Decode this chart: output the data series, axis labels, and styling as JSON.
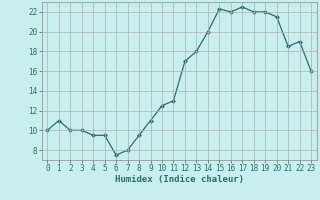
{
  "x": [
    0,
    1,
    2,
    3,
    4,
    5,
    6,
    7,
    8,
    9,
    10,
    11,
    12,
    13,
    14,
    15,
    16,
    17,
    18,
    19,
    20,
    21,
    22,
    23
  ],
  "y": [
    10,
    11,
    10,
    10,
    9.5,
    9.5,
    7.5,
    8,
    9.5,
    11,
    12.5,
    13,
    17,
    18,
    20,
    22.3,
    22,
    22.5,
    22,
    22,
    21.5,
    18.5,
    19,
    16
  ],
  "line_color": "#2d6e6e",
  "marker_color": "#2d6e6e",
  "bg_color": "#c8eeee",
  "grid_color": "#b0b0b0",
  "xlabel": "Humidex (Indice chaleur)",
  "ylim": [
    7,
    23
  ],
  "xlim": [
    -0.5,
    23.5
  ],
  "yticks": [
    8,
    10,
    12,
    14,
    16,
    18,
    20,
    22
  ],
  "xtick_labels": [
    "0",
    "1",
    "2",
    "3",
    "4",
    "5",
    "6",
    "7",
    "8",
    "9",
    "10",
    "11",
    "12",
    "13",
    "14",
    "15",
    "16",
    "17",
    "18",
    "19",
    "20",
    "21",
    "22",
    "23"
  ],
  "label_fontsize": 6.5,
  "tick_fontsize": 5.5
}
